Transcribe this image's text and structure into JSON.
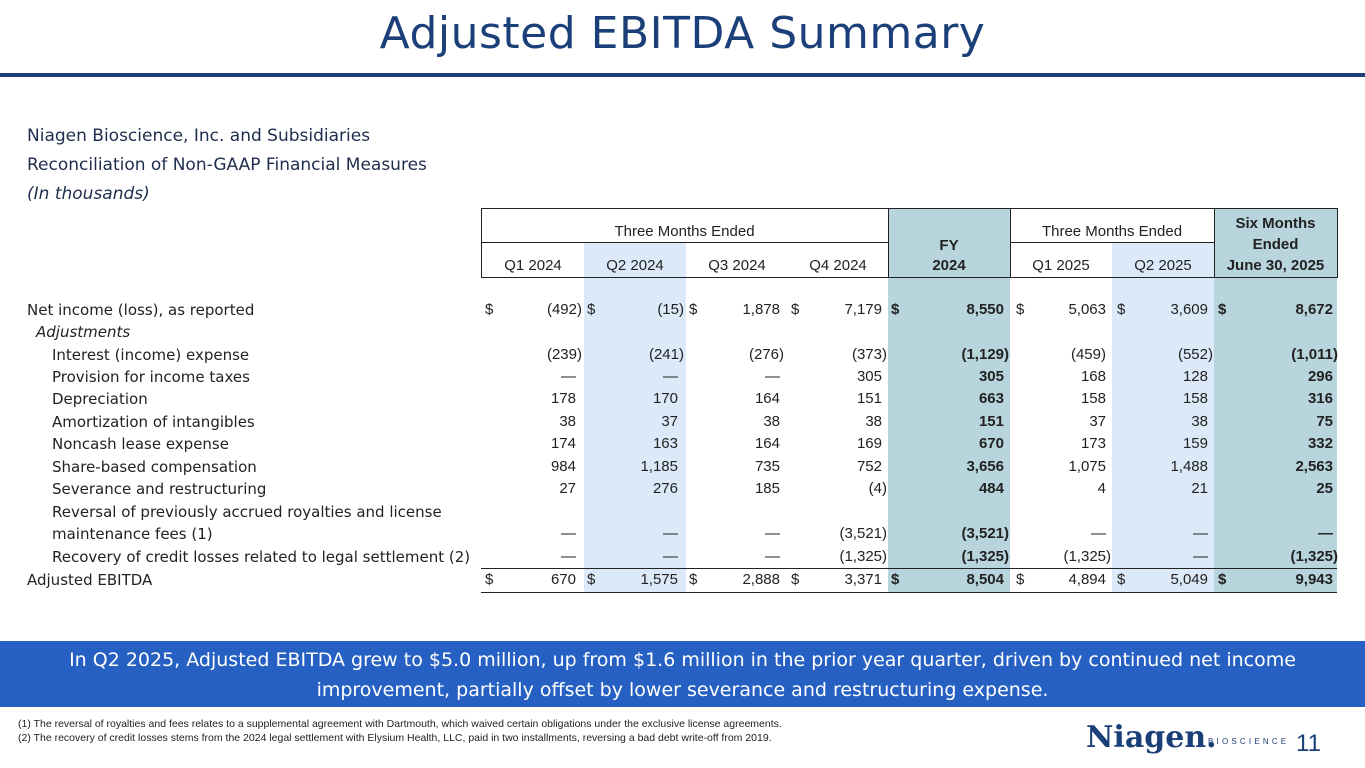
{
  "slide": {
    "title": "Adjusted EBITDA Summary",
    "company": "Niagen Bioscience, Inc. and Subsidiaries",
    "subtitle": "Reconciliation of Non-GAAP Financial Measures",
    "units": "(In thousands)",
    "page_number": "11"
  },
  "table": {
    "group_headers": {
      "three_months_2024": "Three Months Ended",
      "fy_line1": "FY",
      "fy_line2": "2024",
      "three_months_2025": "Three Months Ended",
      "six_line1": "Six Months",
      "six_line2": "Ended",
      "six_line3": "June 30, 2025"
    },
    "columns": [
      "Q1 2024",
      "Q2 2024",
      "Q3 2024",
      "Q4 2024",
      "FY 2024",
      "Q1 2025",
      "Q2 2025",
      "Six Months Ended June 30, 2025"
    ],
    "column_headers": [
      "Q1 2024",
      "Q2 2024",
      "Q3 2024",
      "Q4 2024",
      "Q1 2025",
      "Q2 2025"
    ],
    "currency_symbol": "$",
    "adjustments_label": "Adjustments",
    "rows": [
      {
        "label": "Net income (loss), as reported",
        "values": [
          "(492)",
          "(15)",
          "1,878",
          "7,179",
          "8,550",
          "5,063",
          "3,609",
          "8,672"
        ]
      },
      {
        "label": "Interest (income) expense",
        "values": [
          "(239)",
          "(241)",
          "(276)",
          "(373)",
          "(1,129)",
          "(459)",
          "(552)",
          "(1,011)"
        ]
      },
      {
        "label": "Provision for income taxes",
        "values": [
          "—",
          "—",
          "—",
          "305",
          "305",
          "168",
          "128",
          "296"
        ]
      },
      {
        "label": "Depreciation",
        "values": [
          "178",
          "170",
          "164",
          "151",
          "663",
          "158",
          "158",
          "316"
        ]
      },
      {
        "label": "Amortization of intangibles",
        "values": [
          "38",
          "37",
          "38",
          "38",
          "151",
          "37",
          "38",
          "75"
        ]
      },
      {
        "label": "Noncash lease expense",
        "values": [
          "174",
          "163",
          "164",
          "169",
          "670",
          "173",
          "159",
          "332"
        ]
      },
      {
        "label": "Share-based compensation",
        "values": [
          "984",
          "1,185",
          "735",
          "752",
          "3,656",
          "1,075",
          "1,488",
          "2,563"
        ]
      },
      {
        "label": "Severance and restructuring",
        "values": [
          "27",
          "276",
          "185",
          "(4)",
          "484",
          "4",
          "21",
          "25"
        ]
      },
      {
        "label_line1": "Reversal of previously accrued royalties and license",
        "label_line2": "maintenance fees (1)",
        "values": [
          "—",
          "—",
          "—",
          "(3,521)",
          "(3,521)",
          "—",
          "—",
          "—"
        ]
      },
      {
        "label": "Recovery of credit losses related to legal settlement (2)",
        "values": [
          "—",
          "—",
          "—",
          "(1,325)",
          "(1,325)",
          "(1,325)",
          "—",
          "(1,325)"
        ]
      },
      {
        "label": "Adjusted EBITDA",
        "values": [
          "670",
          "1,575",
          "2,888",
          "3,371",
          "8,504",
          "4,894",
          "5,049",
          "9,943"
        ]
      }
    ]
  },
  "banner": {
    "line1": "In Q2 2025, Adjusted EBITDA grew to $5.0 million, up from $1.6 million in the prior year quarter, driven by continued net income",
    "line2": "improvement, partially offset by lower severance and restructuring expense."
  },
  "footnotes": [
    "(1) The reversal of royalties and fees relates to a supplemental agreement with Dartmouth, which waived certain obligations under the exclusive license agreements.",
    "(2) The recovery of credit losses stems from the 2024 legal settlement with Elysium Health, LLC, paid in two installments, reversing a bad debt write-off from 2019."
  ],
  "logo": {
    "wordmark": "Niagen.",
    "tagline": "BIOSCIENCE"
  },
  "colors": {
    "brand_navy": "#1b3f78",
    "banner_blue": "#2560c2",
    "fy_shade": "#b8d4dc",
    "q2_shade": "#dbe9f8"
  }
}
